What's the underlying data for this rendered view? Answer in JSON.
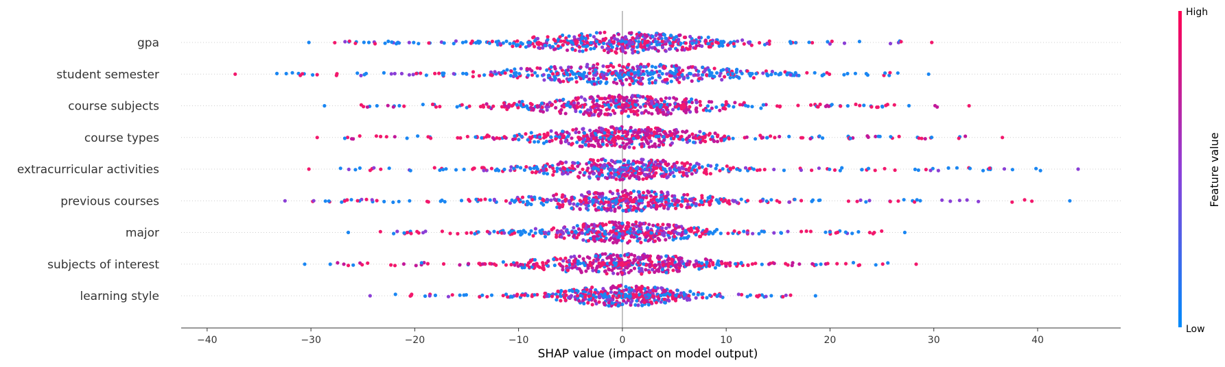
{
  "chart_data": {
    "type": "scatter",
    "subtype": "shap-beeswarm-summary",
    "xlabel": "SHAP value (impact on model output)",
    "xlim": [
      -42.5,
      48
    ],
    "x_ticks": [
      -40,
      -30,
      -20,
      -10,
      0,
      10,
      20,
      30,
      40
    ],
    "x_tick_labels": [
      "−40",
      "−30",
      "−20",
      "−10",
      "0",
      "10",
      "20",
      "30",
      "40"
    ],
    "zero_line": 0,
    "colorbar": {
      "title": "Feature value",
      "high_label": "High",
      "low_label": "Low",
      "high_color": "#ff0052",
      "low_color": "#008bfb"
    },
    "features": [
      {
        "name": "gpa",
        "min": -30.2,
        "max": 29.8,
        "spread": 3.6,
        "density": 360,
        "color_mode": "mixed"
      },
      {
        "name": "student semester",
        "min": -37.3,
        "max": 29.5,
        "spread": 4.2,
        "density": 360,
        "color_mode": "blue-heavy"
      },
      {
        "name": "course subjects",
        "min": -28.7,
        "max": 33.4,
        "spread": 3.6,
        "density": 360,
        "color_mode": "magenta-heavy"
      },
      {
        "name": "course types",
        "min": -29.4,
        "max": 36.6,
        "spread": 3.4,
        "density": 360,
        "color_mode": "magenta-heavy"
      },
      {
        "name": "extracurricular activities",
        "min": -30.2,
        "max": 43.9,
        "spread": 3.2,
        "density": 360,
        "color_mode": "mixed"
      },
      {
        "name": "previous courses",
        "min": -32.5,
        "max": 43.1,
        "spread": 3.2,
        "density": 360,
        "color_mode": "mixed"
      },
      {
        "name": "major",
        "min": -26.4,
        "max": 27.2,
        "spread": 2.8,
        "density": 340,
        "color_mode": "mixed"
      },
      {
        "name": "subjects of interest",
        "min": -30.6,
        "max": 28.3,
        "spread": 3.2,
        "density": 360,
        "color_mode": "magenta-heavy"
      },
      {
        "name": "learning style",
        "min": -24.3,
        "max": 18.6,
        "spread": 2.4,
        "density": 320,
        "color_mode": "mixed"
      }
    ]
  }
}
